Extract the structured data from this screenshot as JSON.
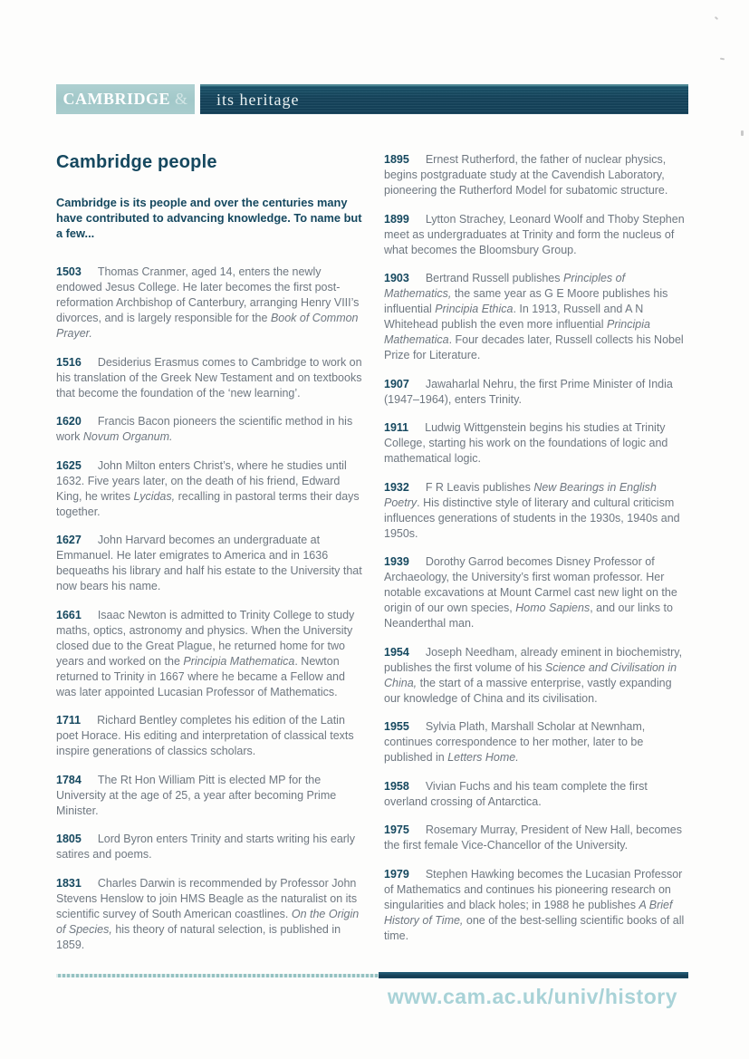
{
  "banner": {
    "brand": "CAMBRIDGE",
    "amp": "&",
    "subtitle": "its heritage"
  },
  "heading": {
    "title": "Cambridge people",
    "intro": "Cambridge is its people and over the centuries many have contributed to advancing knowledge. To name but a few..."
  },
  "columns": {
    "left": [
      {
        "year": "1503",
        "text": "Thomas Cranmer, aged 14, enters the newly endowed Jesus College. He later becomes the first post-reformation Archbishop of Canterbury, arranging Henry VIII’s divorces, and is largely responsible for the *Book of Common Prayer.*"
      },
      {
        "year": "1516",
        "text": "Desiderius Erasmus comes to Cambridge to work on his translation of the Greek New Testament and on textbooks that become the foundation of the ‘new learning’."
      },
      {
        "year": "1620",
        "text": "Francis Bacon pioneers the scientific method in his work *Novum Organum.*"
      },
      {
        "year": "1625",
        "text": "John Milton enters Christ’s, where he studies until 1632. Five years later, on the death of his friend, Edward King, he writes *Lycidas,* recalling in pastoral terms their days together."
      },
      {
        "year": "1627",
        "text": "John Harvard becomes an undergraduate at Emmanuel. He later emigrates to America and in 1636 bequeaths his library and half his estate to the University that now bears his name."
      },
      {
        "year": "1661",
        "text": "Isaac Newton is admitted to Trinity College to study maths, optics, astronomy and physics. When the University closed due to the Great Plague, he returned home for two years and worked on the *Principia Mathematica*. Newton returned to Trinity in 1667 where he became a Fellow and was later appointed Lucasian Professor of Mathematics."
      },
      {
        "year": "1711",
        "text": "Richard Bentley completes his edition of the Latin poet Horace. His editing and interpretation of classical texts inspire generations of classics scholars."
      },
      {
        "year": "1784",
        "text": "The Rt Hon William Pitt is elected MP for the University at the age of 25, a year after becoming Prime Minister."
      },
      {
        "year": "1805",
        "text": "Lord Byron enters Trinity and starts writing his early satires and poems."
      },
      {
        "year": "1831",
        "text": "Charles Darwin is recommended by Professor John Stevens Henslow to join HMS Beagle as the naturalist on its scientific survey of South American coastlines. *On the Origin of Species,* his theory of natural selection, is published in 1859."
      }
    ],
    "right": [
      {
        "year": "1895",
        "text": "Ernest Rutherford, the father of nuclear physics, begins postgraduate study at the Cavendish Laboratory, pioneering the Rutherford Model for subatomic structure."
      },
      {
        "year": "1899",
        "text": "Lytton Strachey, Leonard Woolf and Thoby Stephen meet as undergraduates at Trinity and form the nucleus of what becomes the Bloomsbury Group."
      },
      {
        "year": "1903",
        "text": "Bertrand Russell publishes *Principles of Mathematics,* the same year as G E Moore publishes his influential *Principia Ethica*. In 1913, Russell and A N Whitehead publish the even more influential *Principia Mathematica*. Four decades later, Russell collects his Nobel Prize for Literature."
      },
      {
        "year": "1907",
        "text": "Jawaharlal Nehru, the first Prime Minister of India (1947–1964), enters Trinity."
      },
      {
        "year": "1911",
        "text": "Ludwig Wittgenstein begins his studies at Trinity College, starting his work on the foundations of logic and mathematical logic."
      },
      {
        "year": "1932",
        "text": "F R Leavis publishes *New Bearings in English Poetry*. His distinctive style of literary and cultural criticism influences generations of students in the 1930s, 1940s and 1950s."
      },
      {
        "year": "1939",
        "text": "Dorothy Garrod becomes Disney Professor of Archaeology, the University’s first woman professor. Her notable excavations at Mount Carmel cast new light on the origin of our own species, *Homo Sapiens*, and our links to Neanderthal man."
      },
      {
        "year": "1954",
        "text": "Joseph Needham, already eminent in biochemistry, publishes the first volume of his *Science and Civilisation in China,* the start of a massive enterprise, vastly expanding our knowledge of China and its civilisation."
      },
      {
        "year": "1955",
        "text": "Sylvia Plath, Marshall Scholar at Newnham, continues correspondence to her mother, later to be published in *Letters Home.*"
      },
      {
        "year": "1958",
        "text": "Vivian Fuchs and his team complete the first overland crossing of Antarctica."
      },
      {
        "year": "1975",
        "text": "Rosemary Murray, President of New Hall, becomes the first female Vice-Chancellor of the University."
      },
      {
        "year": "1979",
        "text": "Stephen Hawking becomes the Lucasian Professor of Mathematics and continues his pioneering research on singularities and black holes; in 1988 he publishes *A Brief History of Time,* one of the best-selling scientific books of all time."
      }
    ]
  },
  "footer": {
    "url": "www.cam.ac.uk/univ/history"
  },
  "colors": {
    "dark_teal": "#15485f",
    "banner_dark": "#16465e",
    "banner_light_teal": "#a4c9ca",
    "body_gray": "#6e7780",
    "url_teal": "#a8d2d7"
  }
}
